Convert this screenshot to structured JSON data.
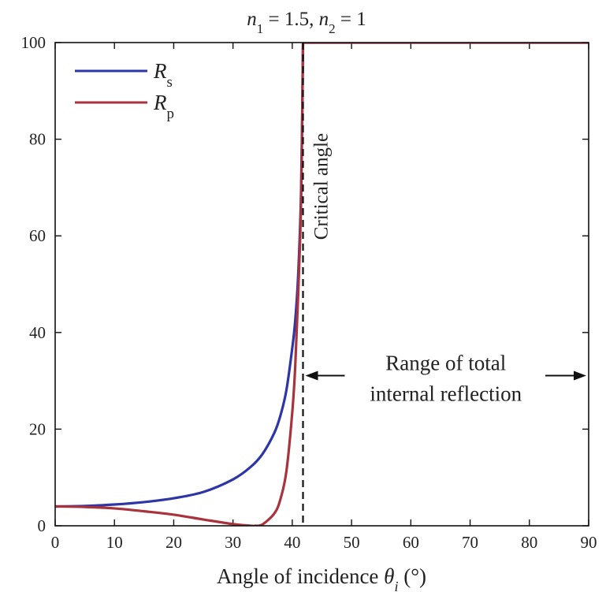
{
  "chart_data": {
    "type": "line",
    "title": {
      "n1_sym": "n",
      "n1_sub": "1",
      "n1_val": " = 1.5,  ",
      "n2_sym": "n",
      "n2_sub": "2",
      "n2_val": " = 1"
    },
    "xlabel": {
      "pre": "Angle of incidence ",
      "sym": "θ",
      "sub": "i",
      "post": " (°)"
    },
    "ylabel": "",
    "xlim": [
      0,
      90
    ],
    "ylim": [
      0,
      100
    ],
    "xticks": [
      0,
      10,
      20,
      30,
      40,
      50,
      60,
      70,
      80,
      90
    ],
    "yticks": [
      0,
      20,
      40,
      60,
      80,
      100
    ],
    "grid": false,
    "legend_position": "top-left",
    "n1": 1.5,
    "n2": 1,
    "critical_angle_deg": 41.81,
    "series": [
      {
        "name": "Rs",
        "legend_sym": "R",
        "legend_sub": "s",
        "color": "#2e35a6",
        "x": [
          0,
          5,
          10,
          15,
          20,
          25,
          30,
          33,
          35,
          37,
          38,
          39,
          40,
          40.5,
          41,
          41.5,
          41.81,
          45,
          50,
          60,
          70,
          80,
          90
        ],
        "y": [
          4.0,
          4.1,
          4.4,
          4.9,
          5.7,
          7.0,
          9.6,
          12.2,
          14.9,
          19.3,
          22.8,
          28.0,
          36.8,
          42.5,
          52.0,
          70.0,
          100,
          100,
          100,
          100,
          100,
          100,
          100
        ]
      },
      {
        "name": "Rp",
        "legend_sym": "R",
        "legend_sub": "p",
        "color": "#a8333d",
        "x": [
          0,
          5,
          10,
          15,
          20,
          25,
          30,
          33,
          33.7,
          35,
          37,
          38,
          39,
          40,
          40.5,
          41,
          41.5,
          41.81,
          45,
          50,
          60,
          70,
          80,
          90
        ],
        "y": [
          4.0,
          3.9,
          3.6,
          3.0,
          2.3,
          1.3,
          0.35,
          0.01,
          0,
          0.3,
          2.6,
          5.5,
          11.2,
          23.5,
          33.0,
          48.0,
          68.0,
          100,
          100,
          100,
          100,
          100,
          100,
          100
        ]
      }
    ],
    "annotations": {
      "critical_angle_label": "Critical angle",
      "tir_line1": "Range of total",
      "tir_line2": "internal reflection",
      "tir_arrow_from": 41.81,
      "tir_arrow_to": 90,
      "tir_arrow_y": 35
    }
  }
}
